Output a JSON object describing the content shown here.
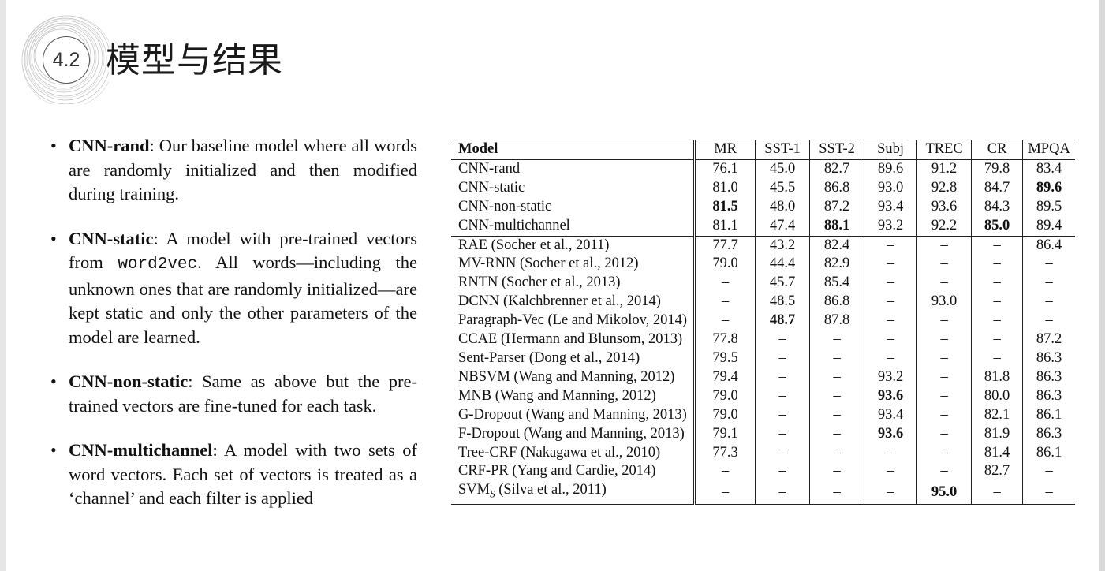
{
  "header": {
    "section_number": "4.2",
    "title": "模型与结果"
  },
  "bullets": [
    {
      "term": "CNN-rand",
      "sep": ":",
      "pre": " Our baseline model where all words are randomly initialized and then modified during training.",
      "code": "",
      "post": ""
    },
    {
      "term": "CNN-static",
      "sep": ":",
      "pre": " A model with pre-trained vectors from ",
      "code": "word2vec",
      "post": ". All words—including the unknown ones that are randomly initialized—are kept static and only the other parameters of the model are learned."
    },
    {
      "term": "CNN-non-static",
      "sep": ":",
      "pre": " Same as above but the pre-trained vectors are fine-tuned for each task.",
      "code": "",
      "post": ""
    },
    {
      "term": "CNN-multichannel",
      "sep": ":",
      "pre": " A model with two sets of word vectors. Each set of vectors is treated as a ‘channel’ and each filter is applied",
      "code": "",
      "post": ""
    }
  ],
  "table": {
    "columns": [
      "Model",
      "MR",
      "SST-1",
      "SST-2",
      "Subj",
      "TREC",
      "CR",
      "MPQA"
    ],
    "rows": [
      {
        "model": "CNN-rand",
        "values": [
          "76.1",
          "45.0",
          "82.7",
          "89.6",
          "91.2",
          "79.8",
          "83.4"
        ],
        "bold": []
      },
      {
        "model": "CNN-static",
        "values": [
          "81.0",
          "45.5",
          "86.8",
          "93.0",
          "92.8",
          "84.7",
          "89.6"
        ],
        "bold": [
          6
        ]
      },
      {
        "model": "CNN-non-static",
        "values": [
          "81.5",
          "48.0",
          "87.2",
          "93.4",
          "93.6",
          "84.3",
          "89.5"
        ],
        "bold": [
          0
        ]
      },
      {
        "model": "CNN-multichannel",
        "values": [
          "81.1",
          "47.4",
          "88.1",
          "93.2",
          "92.2",
          "85.0",
          "89.4"
        ],
        "bold": [
          2,
          5
        ]
      },
      {
        "model": "RAE (Socher et al., 2011)",
        "values": [
          "77.7",
          "43.2",
          "82.4",
          "–",
          "–",
          "–",
          "86.4"
        ],
        "bold": []
      },
      {
        "model": "MV-RNN (Socher et al., 2012)",
        "values": [
          "79.0",
          "44.4",
          "82.9",
          "–",
          "–",
          "–",
          "–"
        ],
        "bold": []
      },
      {
        "model": "RNTN (Socher et al., 2013)",
        "values": [
          "–",
          "45.7",
          "85.4",
          "–",
          "–",
          "–",
          "–"
        ],
        "bold": []
      },
      {
        "model": "DCNN (Kalchbrenner et al., 2014)",
        "values": [
          "–",
          "48.5",
          "86.8",
          "–",
          "93.0",
          "–",
          "–"
        ],
        "bold": []
      },
      {
        "model": "Paragraph-Vec (Le and Mikolov, 2014)",
        "values": [
          "–",
          "48.7",
          "87.8",
          "–",
          "–",
          "–",
          "–"
        ],
        "bold": [
          1
        ]
      },
      {
        "model": "CCAE (Hermann and Blunsom, 2013)",
        "values": [
          "77.8",
          "–",
          "–",
          "–",
          "–",
          "–",
          "87.2"
        ],
        "bold": []
      },
      {
        "model": "Sent-Parser (Dong et al., 2014)",
        "values": [
          "79.5",
          "–",
          "–",
          "–",
          "–",
          "–",
          "86.3"
        ],
        "bold": []
      },
      {
        "model": "NBSVM (Wang and Manning, 2012)",
        "values": [
          "79.4",
          "–",
          "–",
          "93.2",
          "–",
          "81.8",
          "86.3"
        ],
        "bold": []
      },
      {
        "model": "MNB (Wang and Manning, 2012)",
        "values": [
          "79.0",
          "–",
          "–",
          "93.6",
          "–",
          "80.0",
          "86.3"
        ],
        "bold": [
          3
        ]
      },
      {
        "model": "G-Dropout (Wang and Manning, 2013)",
        "values": [
          "79.0",
          "–",
          "–",
          "93.4",
          "–",
          "82.1",
          "86.1"
        ],
        "bold": []
      },
      {
        "model": "F-Dropout (Wang and Manning, 2013)",
        "values": [
          "79.1",
          "–",
          "–",
          "93.6",
          "–",
          "81.9",
          "86.3"
        ],
        "bold": [
          3
        ]
      },
      {
        "model": "Tree-CRF (Nakagawa et al., 2010)",
        "values": [
          "77.3",
          "–",
          "–",
          "–",
          "–",
          "81.4",
          "86.1"
        ],
        "bold": []
      },
      {
        "model": "CRF-PR (Yang and Cardie, 2014)",
        "values": [
          "–",
          "–",
          "–",
          "–",
          "–",
          "82.7",
          "–"
        ],
        "bold": []
      },
      {
        "model": "SVM",
        "model_sub": "S",
        "model_rest": " (Silva et al., 2011)",
        "values": [
          "–",
          "–",
          "–",
          "–",
          "95.0",
          "–",
          "–"
        ],
        "bold": [
          4
        ]
      }
    ]
  }
}
